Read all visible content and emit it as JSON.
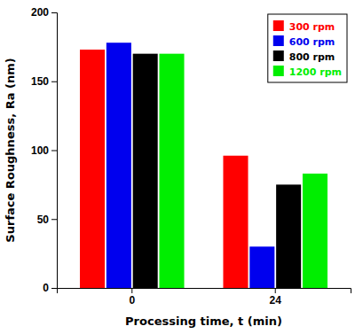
{
  "chart_data": {
    "type": "bar",
    "xlabel": "Processing time, t (min)",
    "ylabel": "Surface Roughness, Ra (nm)",
    "categories": [
      "0",
      "24"
    ],
    "series": [
      {
        "name": "300 rpm",
        "color": "#ff0000",
        "values": [
          173,
          96
        ]
      },
      {
        "name": "600 rpm",
        "color": "#0000ee",
        "values": [
          178,
          30
        ]
      },
      {
        "name": "800 rpm",
        "color": "#000000",
        "values": [
          170,
          75
        ]
      },
      {
        "name": "1200 rpm",
        "color": "#00ee00",
        "values": [
          170,
          83
        ]
      }
    ],
    "ylim": [
      0,
      200
    ],
    "yticks": [
      0,
      50,
      100,
      150,
      200
    ],
    "grid": false,
    "legend": "top-right"
  }
}
